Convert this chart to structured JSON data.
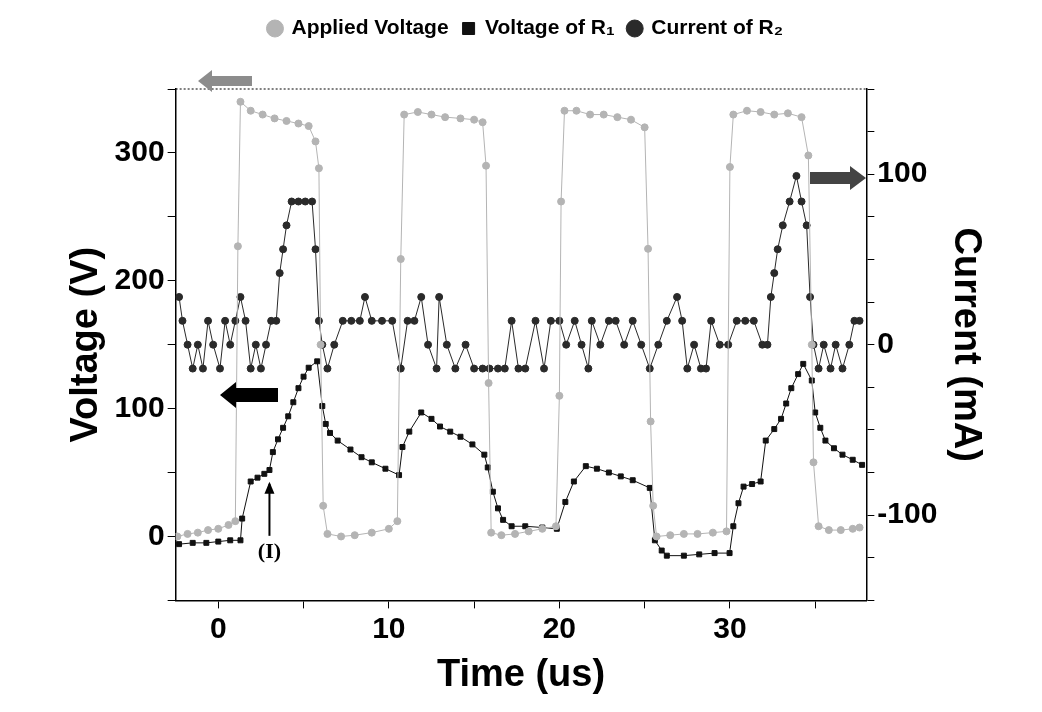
{
  "chart_data": {
    "type": "line",
    "xlabel": "Time (us)",
    "ylabel": "Voltage (V)",
    "y2label": "Current (mA)",
    "xlim": [
      -2.5,
      38
    ],
    "xticks": [
      0,
      {
        "value": 5,
        "label": null
      },
      10,
      {
        "value": 15,
        "label": null
      },
      20,
      {
        "value": 25,
        "label": null
      },
      30,
      {
        "value": 35,
        "label": null
      }
    ],
    "ylim": [
      -50,
      350
    ],
    "yticks": [
      {
        "value": -50,
        "label": null
      },
      0,
      {
        "value": 50,
        "label": null
      },
      100,
      {
        "value": 150,
        "label": null
      },
      200,
      {
        "value": 250,
        "label": null
      },
      300,
      {
        "value": 350,
        "label": null
      }
    ],
    "y2lim": [
      -150,
      150
    ],
    "y2ticks": [
      {
        "value": -150,
        "label": null
      },
      {
        "value": -125,
        "label": null
      },
      -100,
      {
        "value": -75,
        "label": null
      },
      {
        "value": -50,
        "label": null
      },
      {
        "value": -25,
        "label": null
      },
      0,
      {
        "value": 25,
        "label": null
      },
      {
        "value": 50,
        "label": null
      },
      {
        "value": 75,
        "label": null
      },
      100,
      {
        "value": 125,
        "label": null
      },
      {
        "value": 150,
        "label": null
      }
    ],
    "grid": false,
    "legend": "top",
    "line_style": "solid",
    "annotations": [
      {
        "text": "(I)",
        "x": 3,
        "y": 49
      }
    ],
    "series": [
      {
        "name": "Applied Voltage",
        "color": "#b4b4b4",
        "marker": "circle",
        "x": [
          -2.4,
          -1.8,
          -1.2,
          -0.6,
          0,
          0.6,
          1.0,
          1.15,
          1.3,
          1.9,
          2.6,
          3.3,
          4.0,
          4.7,
          5.3,
          5.7,
          5.9,
          6.0,
          6.15,
          6.4,
          7.2,
          8.0,
          9.0,
          10.0,
          10.5,
          10.7,
          10.9,
          11.7,
          12.5,
          13.3,
          14.2,
          15.0,
          15.5,
          15.7,
          15.85,
          16.0,
          16.6,
          17.4,
          18.2,
          19.0,
          19.8,
          20.0,
          20.1,
          20.3,
          21.0,
          21.8,
          22.6,
          23.4,
          24.2,
          25.0,
          25.2,
          25.35,
          25.5,
          25.7,
          26.5,
          27.3,
          28.1,
          29.0,
          29.8,
          30.0,
          30.2,
          31.0,
          31.8,
          32.6,
          33.4,
          34.2,
          34.6,
          34.8,
          34.9,
          35.2,
          35.8,
          36.5,
          37.2,
          37.6
        ],
        "values": [
          0,
          2,
          3,
          5,
          6,
          9,
          12,
          227,
          340,
          333,
          330,
          327,
          325,
          323,
          321,
          309,
          288,
          150,
          24,
          2,
          0,
          1,
          3,
          6,
          12,
          217,
          330,
          332,
          330,
          328,
          327,
          326,
          324,
          290,
          120,
          3,
          1,
          2,
          4,
          6,
          8,
          110,
          262,
          333,
          333,
          330,
          330,
          328,
          326,
          320,
          225,
          90,
          24,
          0,
          1,
          2,
          2,
          3,
          4,
          289,
          330,
          333,
          332,
          330,
          331,
          328,
          298,
          150,
          58,
          8,
          5,
          5,
          6,
          7
        ]
      },
      {
        "name": "Voltage of R₁",
        "color": "#111111",
        "marker": "square",
        "x": [
          -2.3,
          -1.5,
          -0.7,
          0,
          0.7,
          1.3,
          1.4,
          1.9,
          2.3,
          2.7,
          3.0,
          3.2,
          3.5,
          3.8,
          4.1,
          4.4,
          4.7,
          5.0,
          5.3,
          5.8,
          6.1,
          6.3,
          6.55,
          7.0,
          7.75,
          8.4,
          9.0,
          9.8,
          10.6,
          10.8,
          11.2,
          11.9,
          12.5,
          13.0,
          13.6,
          14.2,
          14.9,
          15.6,
          15.8,
          16.1,
          16.4,
          16.7,
          17.2,
          18.0,
          19.0,
          19.85,
          20.35,
          20.85,
          21.55,
          22.2,
          22.9,
          23.6,
          24.3,
          25.3,
          25.6,
          26.0,
          26.3,
          27.3,
          28.2,
          29.1,
          29.98,
          30.2,
          30.5,
          30.8,
          31.3,
          31.8,
          32.1,
          32.6,
          33.0,
          33.3,
          33.6,
          34.0,
          34.3,
          34.8,
          35.0,
          35.3,
          35.6,
          36.1,
          36.6,
          37.2,
          37.75
        ],
        "values": [
          -6,
          -5,
          -5,
          -4,
          -3,
          -3,
          14,
          43,
          46,
          49,
          52,
          66,
          76,
          85,
          94,
          105,
          116,
          125,
          132,
          137,
          102,
          88,
          81,
          75,
          68,
          62,
          58,
          53,
          48,
          70,
          82,
          97,
          92,
          86,
          82,
          78,
          72,
          64,
          54,
          35,
          22,
          13,
          8,
          8,
          7,
          6,
          27,
          43,
          55,
          53,
          50,
          47,
          44,
          38,
          -3,
          -11,
          -15,
          -15,
          -14,
          -13,
          -13,
          8,
          26,
          39,
          41,
          43,
          75,
          84,
          92,
          104,
          116,
          127,
          135,
          122,
          97,
          85,
          75,
          69,
          64,
          60,
          56
        ]
      },
      {
        "name": "Current of R₂",
        "color": "#2a2a2a",
        "marker": "circle",
        "axis": "y2",
        "x": [
          -2.3,
          -2.1,
          -1.8,
          -1.5,
          -1.2,
          -0.9,
          -0.6,
          -0.3,
          0.1,
          0.4,
          0.7,
          1.0,
          1.3,
          1.6,
          1.9,
          2.2,
          2.5,
          2.8,
          3.1,
          3.4,
          3.6,
          3.8,
          4.0,
          4.3,
          4.7,
          5.1,
          5.5,
          5.7,
          5.9,
          6.1,
          6.4,
          6.8,
          7.3,
          7.8,
          8.3,
          8.6,
          9.0,
          9.6,
          10.2,
          10.7,
          11.1,
          11.5,
          11.9,
          12.3,
          12.8,
          12.95,
          13.4,
          13.9,
          14.5,
          15.0,
          15.5,
          15.9,
          16.4,
          16.8,
          17.2,
          17.6,
          18.0,
          18.6,
          19.1,
          19.5,
          20.0,
          20.4,
          20.9,
          21.3,
          21.7,
          21.9,
          22.4,
          22.9,
          23.3,
          23.8,
          24.3,
          24.8,
          25.3,
          25.8,
          26.3,
          26.9,
          27.2,
          27.5,
          27.9,
          28.3,
          28.6,
          28.9,
          29.4,
          29.9,
          30.4,
          30.9,
          31.4,
          31.9,
          32.2,
          32.4,
          32.6,
          32.8,
          33.1,
          33.5,
          33.9,
          34.2,
          34.5,
          34.7,
          34.9,
          35.2,
          35.5,
          35.9,
          36.2,
          36.6,
          37.0,
          37.3,
          37.6
        ],
        "values": [
          28,
          14,
          0,
          -14,
          0,
          -14,
          14,
          0,
          -14,
          14,
          0,
          14,
          28,
          14,
          -14,
          0,
          -14,
          0,
          14,
          14,
          42,
          56,
          70,
          84,
          84,
          84,
          84,
          56,
          14,
          0,
          -14,
          0,
          14,
          14,
          14,
          28,
          14,
          14,
          14,
          -14,
          14,
          14,
          28,
          0,
          -14,
          28,
          0,
          -14,
          0,
          -14,
          -14,
          -14,
          -14,
          -14,
          14,
          -14,
          -14,
          14,
          -14,
          14,
          14,
          0,
          14,
          0,
          -14,
          14,
          0,
          14,
          14,
          0,
          14,
          0,
          -14,
          0,
          14,
          28,
          14,
          -14,
          0,
          -14,
          -14,
          14,
          0,
          0,
          14,
          14,
          14,
          0,
          0,
          28,
          42,
          56,
          70,
          84,
          99,
          84,
          70,
          28,
          0,
          -14,
          0,
          -14,
          0,
          -14,
          0,
          14,
          14
        ]
      }
    ]
  }
}
